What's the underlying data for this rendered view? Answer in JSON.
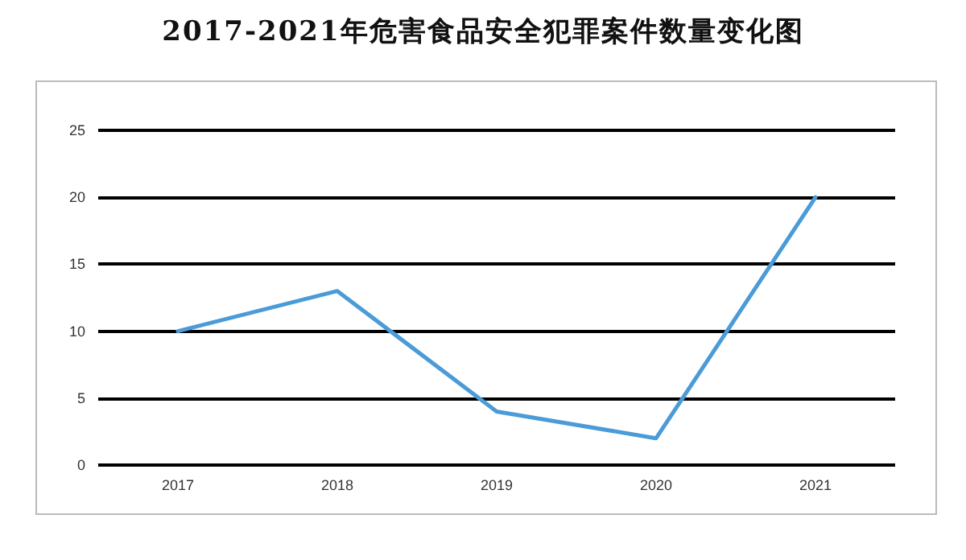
{
  "chart_data": {
    "type": "line",
    "title": "2017-2021年危害食品安全犯罪案件数量变化图",
    "categories": [
      "2017",
      "2018",
      "2019",
      "2020",
      "2021"
    ],
    "series": [
      {
        "color": "#4a9bd8",
        "values": [
          10,
          13,
          4,
          2,
          20
        ]
      }
    ],
    "ylim": [
      0,
      25
    ],
    "yticks": [
      0,
      5,
      10,
      15,
      20,
      25
    ],
    "grid": "y",
    "marker": "none",
    "line_style": "solid"
  }
}
